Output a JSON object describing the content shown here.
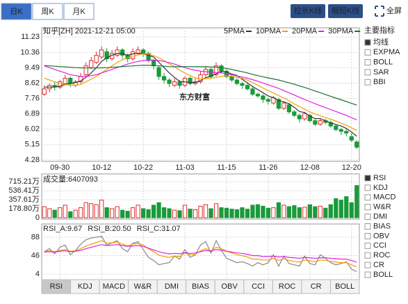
{
  "ui": {
    "period_tabs": [
      "日K",
      "周K",
      "月K"
    ],
    "period_selected": 0,
    "buttons": [
      "拉长K线",
      "缩短K线"
    ],
    "fullscreen": "全屏",
    "watermark": "东方财富",
    "main_indicators": {
      "title": "主要指标",
      "items": [
        "均线",
        "EXPMA",
        "BOLL",
        "SAR",
        "BBI"
      ],
      "checked": 0
    },
    "sub_indicators": {
      "items": [
        "RSI",
        "KDJ",
        "MACD",
        "W&R",
        "DMI",
        "BIAS",
        "OBV",
        "CCI",
        "ROC",
        "CR",
        "BOLL"
      ],
      "checked": 0
    },
    "tabs": [
      "RSI",
      "KDJ",
      "MACD",
      "W&R",
      "DMI",
      "BIAS",
      "OBV",
      "CCI",
      "ROC",
      "CR",
      "BOLL"
    ],
    "tab_selected": 0
  },
  "chart_data": [
    {
      "type": "candlestick",
      "title": "知乎[ZH] 2021-12-21 05:00",
      "up_color": "#e02a2a",
      "down_color": "#1a9a3a",
      "grid": true,
      "categories": [
        null,
        null,
        null,
        "09-30",
        null,
        null,
        null,
        null,
        null,
        null,
        null,
        "10-12",
        null,
        null,
        null,
        null,
        null,
        null,
        null,
        "10-22",
        null,
        null,
        null,
        null,
        null,
        null,
        null,
        "11-03",
        null,
        null,
        null,
        null,
        null,
        null,
        null,
        "11-15",
        null,
        null,
        null,
        null,
        null,
        null,
        null,
        "11-26",
        null,
        null,
        null,
        null,
        null,
        null,
        null,
        "12-08",
        null,
        null,
        null,
        null,
        null,
        null,
        null,
        "12-20",
        null
      ],
      "open": [
        8.0,
        8.3,
        8.5,
        8.4,
        8.6,
        8.9,
        8.5,
        8.7,
        9.1,
        9.5,
        9.8,
        10.1,
        10.4,
        10.0,
        10.2,
        10.5,
        10.2,
        10.0,
        10.3,
        10.5,
        10.3,
        9.9,
        9.5,
        9.0,
        8.8,
        8.5,
        8.7,
        8.5,
        8.9,
        8.6,
        8.7,
        9.1,
        9.4,
        9.1,
        9.6,
        9.3,
        9.0,
        8.8,
        8.6,
        8.5,
        8.3,
        8.0,
        7.9,
        7.7,
        7.5,
        7.7,
        7.2,
        7.4,
        7.0,
        6.8,
        6.6,
        6.8,
        6.5,
        6.3,
        6.5,
        6.4,
        6.2,
        6.0,
        5.9,
        5.6,
        5.3
      ],
      "high": [
        8.5,
        8.6,
        8.7,
        8.8,
        9.1,
        9.0,
        8.8,
        9.2,
        9.8,
        10.1,
        10.4,
        10.7,
        10.6,
        10.5,
        10.7,
        10.6,
        10.3,
        10.6,
        10.7,
        10.6,
        10.4,
        10.0,
        9.6,
        9.2,
        8.9,
        8.9,
        8.8,
        9.0,
        9.0,
        8.9,
        9.3,
        9.6,
        9.5,
        9.8,
        9.7,
        9.4,
        9.1,
        8.9,
        8.7,
        8.6,
        8.4,
        8.1,
        8.0,
        7.8,
        7.9,
        7.8,
        7.6,
        7.5,
        7.1,
        6.9,
        7.0,
        6.9,
        6.6,
        6.6,
        6.6,
        6.5,
        6.3,
        6.1,
        6.0,
        5.8,
        5.4
      ],
      "low": [
        7.9,
        8.1,
        8.2,
        8.3,
        8.5,
        8.4,
        8.4,
        8.6,
        9.0,
        9.4,
        9.7,
        10.0,
        9.8,
        9.9,
        10.1,
        10.0,
        9.8,
        9.9,
        10.2,
        10.1,
        9.8,
        9.4,
        8.8,
        8.6,
        8.4,
        8.4,
        8.3,
        8.4,
        8.5,
        8.5,
        8.6,
        9.0,
        8.9,
        9.0,
        9.2,
        8.9,
        8.7,
        8.5,
        8.3,
        8.2,
        7.9,
        7.8,
        7.5,
        7.4,
        7.4,
        7.1,
        7.1,
        6.9,
        6.7,
        6.4,
        6.5,
        6.4,
        6.2,
        6.2,
        6.3,
        6.1,
        5.9,
        5.7,
        5.6,
        5.3,
        4.9
      ],
      "close": [
        8.3,
        8.5,
        8.4,
        8.7,
        8.9,
        8.6,
        8.7,
        9.0,
        9.6,
        9.9,
        10.2,
        10.5,
        10.0,
        10.3,
        10.5,
        10.2,
        10.0,
        10.4,
        10.5,
        10.3,
        9.9,
        9.6,
        9.0,
        8.8,
        8.6,
        8.7,
        8.5,
        8.9,
        8.6,
        8.7,
        9.1,
        9.4,
        9.0,
        9.6,
        9.3,
        9.0,
        8.8,
        8.6,
        8.5,
        8.3,
        8.0,
        7.9,
        7.7,
        7.6,
        7.8,
        7.2,
        7.5,
        7.0,
        6.8,
        6.6,
        6.9,
        6.5,
        6.3,
        6.5,
        6.4,
        6.2,
        6.0,
        5.9,
        5.8,
        5.4,
        5.0
      ],
      "series": [
        {
          "name": "5PMA",
          "color": "#333333",
          "values": [
            8.4,
            8.4,
            8.4,
            8.45,
            8.55,
            8.6,
            8.65,
            8.75,
            8.95,
            9.2,
            9.5,
            9.85,
            10.05,
            10.2,
            10.3,
            10.3,
            10.2,
            10.28,
            10.32,
            10.28,
            10.2,
            10.1,
            9.8,
            9.5,
            9.2,
            8.95,
            8.72,
            8.7,
            8.66,
            8.66,
            8.76,
            8.94,
            9.0,
            9.16,
            9.28,
            9.26,
            9.14,
            9.06,
            8.84,
            8.64,
            8.44,
            8.26,
            8.08,
            7.9,
            7.8,
            7.64,
            7.56,
            7.46,
            7.26,
            7.02,
            6.96,
            6.76,
            6.62,
            6.62,
            6.5,
            6.38,
            6.28,
            6.2,
            6.06,
            5.86,
            5.62
          ]
        },
        {
          "name": "10PMA",
          "color": "#f0a000",
          "values": [
            8.9,
            8.8,
            8.7,
            8.6,
            8.55,
            8.5,
            8.5,
            8.55,
            8.7,
            8.85,
            9.0,
            9.2,
            9.4,
            9.6,
            9.8,
            9.95,
            10.05,
            10.15,
            10.22,
            10.28,
            10.25,
            10.18,
            10.05,
            9.9,
            9.72,
            9.55,
            9.35,
            9.2,
            9.05,
            8.92,
            8.85,
            8.88,
            8.9,
            8.95,
            9.0,
            9.05,
            9.0,
            8.95,
            8.9,
            8.8,
            8.65,
            8.5,
            8.35,
            8.2,
            8.07,
            7.92,
            7.78,
            7.62,
            7.45,
            7.3,
            7.15,
            7.0,
            6.88,
            6.78,
            6.68,
            6.58,
            6.48,
            6.36,
            6.24,
            6.1,
            5.95
          ]
        },
        {
          "name": "20PMA",
          "color": "#e020e0",
          "values": [
            9.6,
            9.5,
            9.4,
            9.3,
            9.2,
            9.1,
            9.05,
            9.0,
            9.0,
            9.05,
            9.1,
            9.2,
            9.3,
            9.4,
            9.5,
            9.6,
            9.7,
            9.78,
            9.85,
            9.9,
            9.92,
            9.92,
            9.9,
            9.85,
            9.78,
            9.7,
            9.6,
            9.5,
            9.42,
            9.35,
            9.3,
            9.27,
            9.25,
            9.22,
            9.2,
            9.15,
            9.1,
            9.03,
            8.97,
            8.9,
            8.82,
            8.73,
            8.63,
            8.53,
            8.43,
            8.33,
            8.2,
            8.08,
            7.95,
            7.82,
            7.7,
            7.58,
            7.46,
            7.35,
            7.24,
            7.13,
            7.02,
            6.91,
            6.8,
            6.67,
            6.55
          ]
        },
        {
          "name": "30PMA",
          "color": "#1e6e2e",
          "values": [
            9.62,
            9.6,
            9.58,
            9.56,
            9.54,
            9.52,
            9.5,
            9.49,
            9.48,
            9.48,
            9.48,
            9.49,
            9.5,
            9.52,
            9.54,
            9.56,
            9.58,
            9.6,
            9.62,
            9.63,
            9.63,
            9.62,
            9.6,
            9.58,
            9.56,
            9.55,
            9.55,
            9.56,
            9.56,
            9.55,
            9.55,
            9.55,
            9.54,
            9.53,
            9.5,
            9.45,
            9.4,
            9.33,
            9.27,
            9.2,
            9.12,
            9.05,
            8.98,
            8.92,
            8.86,
            8.8,
            8.72,
            8.64,
            8.56,
            8.47,
            8.38,
            8.28,
            8.18,
            8.08,
            7.98,
            7.88,
            7.78,
            7.68,
            7.58,
            7.48,
            7.38
          ]
        }
      ],
      "ylim": [
        4.2,
        11.75
      ],
      "yticks": [
        11.23,
        10.36,
        9.49,
        8.62,
        7.76,
        6.89,
        6.02,
        5.15,
        4.28
      ]
    },
    {
      "type": "bar",
      "title": "成交量:6407093",
      "grid": true,
      "values": [
        220,
        180,
        150,
        200,
        250,
        120,
        150,
        200,
        300,
        280,
        260,
        350,
        200,
        180,
        220,
        150,
        130,
        200,
        250,
        180,
        160,
        250,
        300,
        200,
        180,
        150,
        140,
        250,
        170,
        160,
        230,
        260,
        180,
        280,
        200,
        190,
        170,
        160,
        200,
        170,
        250,
        260,
        230,
        190,
        200,
        300,
        250,
        220,
        240,
        200,
        210,
        260,
        220,
        230,
        190,
        260,
        380,
        350,
        420,
        300,
        640.7093
      ],
      "ylim": [
        -28,
        872
      ],
      "yticks": [
        {
          "value": 715.21,
          "label": "715.21万"
        },
        {
          "value": 536.41,
          "label": "536.41万"
        },
        {
          "value": 357.61,
          "label": "357.61万"
        },
        {
          "value": 178.8,
          "label": "178.80万"
        },
        0
      ]
    },
    {
      "type": "line",
      "grid": true,
      "series": [
        {
          "name": "RSI_A:9.67",
          "color": "#888888",
          "values": [
            55,
            62,
            50,
            65,
            70,
            48,
            58,
            72,
            82,
            86,
            88,
            90,
            70,
            75,
            80,
            62,
            55,
            74,
            78,
            60,
            42,
            35,
            25,
            28,
            30,
            45,
            38,
            60,
            42,
            48,
            70,
            78,
            52,
            80,
            58,
            40,
            35,
            30,
            32,
            28,
            22,
            30,
            25,
            30,
            48,
            22,
            45,
            28,
            25,
            22,
            45,
            28,
            25,
            48,
            40,
            30,
            25,
            28,
            32,
            15,
            9.67
          ]
        },
        {
          "name": "RSI_B:20.50",
          "color": "#f0a000",
          "values": [
            55,
            57,
            55,
            58,
            60,
            56,
            57,
            62,
            68,
            72,
            76,
            80,
            75,
            75,
            77,
            72,
            68,
            72,
            74,
            70,
            62,
            55,
            47,
            44,
            42,
            45,
            44,
            52,
            48,
            49,
            57,
            62,
            57,
            65,
            62,
            56,
            52,
            48,
            46,
            43,
            38,
            38,
            36,
            36,
            40,
            35,
            39,
            35,
            33,
            31,
            36,
            34,
            32,
            36,
            35,
            33,
            31,
            30,
            30,
            25,
            20.5
          ]
        },
        {
          "name": "RSI_C:31.07",
          "color": "#e020e0",
          "values": [
            54,
            55,
            54,
            56,
            57,
            55,
            56,
            58,
            62,
            65,
            68,
            71,
            69,
            70,
            71,
            69,
            67,
            68,
            69,
            67,
            63,
            59,
            55,
            52,
            50,
            51,
            50,
            53,
            51,
            52,
            55,
            58,
            56,
            60,
            58,
            56,
            54,
            52,
            51,
            49,
            46,
            46,
            44,
            44,
            45,
            43,
            44,
            42,
            41,
            40,
            42,
            41,
            40,
            41,
            41,
            40,
            39,
            38,
            38,
            35,
            31.07
          ]
        }
      ],
      "ylim": [
        -8.7,
        118
      ],
      "yticks": [
        88,
        46,
        4
      ]
    }
  ]
}
